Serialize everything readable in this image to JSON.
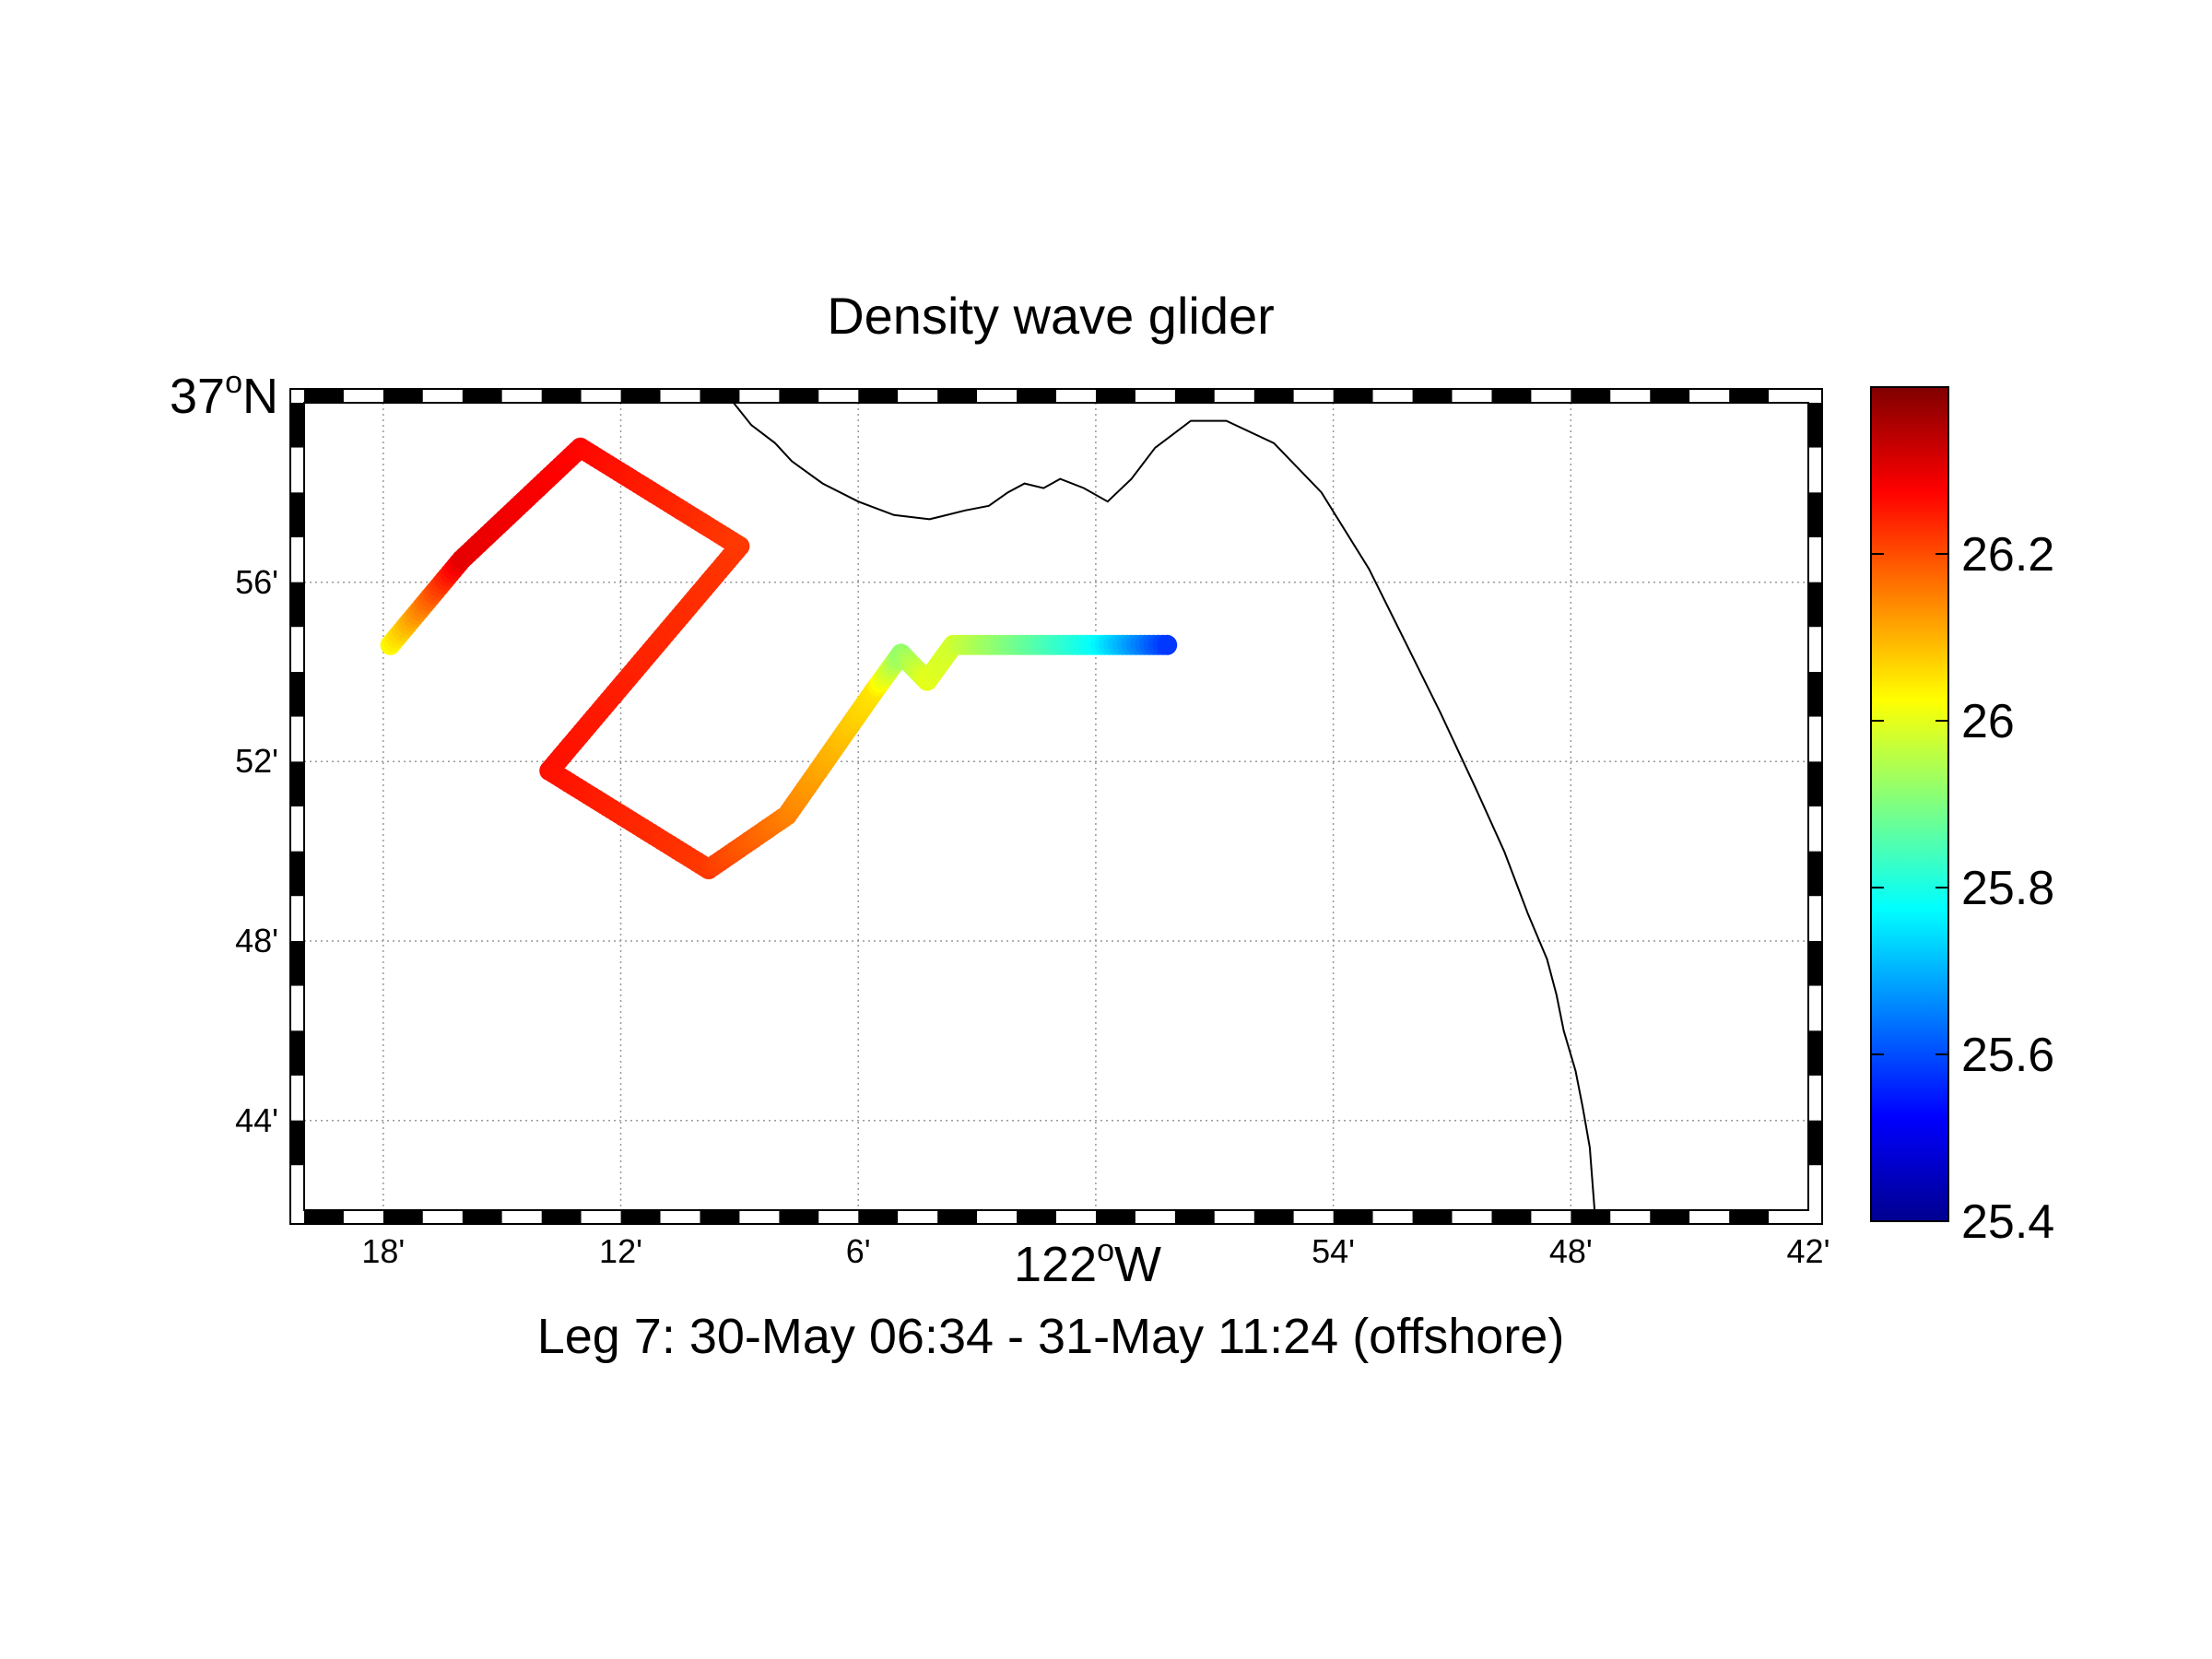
{
  "title": "Density wave glider",
  "subtitle": "Leg 7: 30-May 06:34 - 31-May 11:24 (offshore)",
  "map": {
    "lon_range": [
      -122.3333,
      -121.7
    ],
    "lat_range": [
      36.7,
      37.0
    ],
    "x_ticks": [
      {
        "lon": -122.3,
        "label": "18'"
      },
      {
        "lon": -122.2,
        "label": "12'"
      },
      {
        "lon": -122.1,
        "label": "6'"
      },
      {
        "lon": -121.9,
        "label": "54'"
      },
      {
        "lon": -121.8,
        "label": "48'"
      },
      {
        "lon": -121.7,
        "label": "42'"
      }
    ],
    "x_main_label": {
      "lon": -122.0,
      "deg": "122",
      "suffix": "W"
    },
    "y_ticks": [
      {
        "lat": 36.9333,
        "label": "56'"
      },
      {
        "lat": 36.8667,
        "label": "52'"
      },
      {
        "lat": 36.8,
        "label": "48'"
      },
      {
        "lat": 36.7333,
        "label": "44'"
      }
    ],
    "y_main_label": {
      "lat": 37.0,
      "deg": "37",
      "suffix": "N"
    },
    "coastline": [
      [
        -122.1525,
        37.0
      ],
      [
        -122.145,
        36.9917
      ],
      [
        -122.135,
        36.985
      ],
      [
        -122.128,
        36.9783
      ],
      [
        -122.115,
        36.97
      ],
      [
        -122.1,
        36.9633
      ],
      [
        -122.085,
        36.9583
      ],
      [
        -122.07,
        36.9567
      ],
      [
        -122.055,
        36.96
      ],
      [
        -122.045,
        36.9617
      ],
      [
        -122.037,
        36.9667
      ],
      [
        -122.03,
        36.97
      ],
      [
        -122.022,
        36.9683
      ],
      [
        -122.015,
        36.9717
      ],
      [
        -122.005,
        36.9683
      ],
      [
        -121.995,
        36.9633
      ],
      [
        -121.985,
        36.9717
      ],
      [
        -121.975,
        36.9833
      ],
      [
        -121.96,
        36.9933
      ],
      [
        -121.945,
        36.9933
      ],
      [
        -121.925,
        36.985
      ],
      [
        -121.905,
        36.9667
      ],
      [
        -121.885,
        36.9383
      ],
      [
        -121.87,
        36.9117
      ],
      [
        -121.855,
        36.885
      ],
      [
        -121.84,
        36.8567
      ],
      [
        -121.828,
        36.8333
      ],
      [
        -121.818,
        36.81
      ],
      [
        -121.81,
        36.7933
      ],
      [
        -121.806,
        36.78
      ],
      [
        -121.803,
        36.7667
      ],
      [
        -121.798,
        36.7517
      ],
      [
        -121.795,
        36.7383
      ],
      [
        -121.792,
        36.7233
      ],
      [
        -121.79,
        36.7
      ]
    ],
    "colorbar": {
      "min": 25.4,
      "max": 26.4,
      "ticks": [
        25.4,
        25.6,
        25.8,
        26,
        26.2
      ],
      "colormap": "jet"
    }
  },
  "chart_data": {
    "type": "scatter",
    "title": "Density wave glider",
    "subtitle": "Leg 7: 30-May 06:34 - 31-May 11:24 (offshore)",
    "x_unit": "degrees longitude",
    "y_unit": "degrees latitude",
    "waypoints": [
      {
        "lon": -122.297,
        "lat": 36.91,
        "density": 26.03
      },
      {
        "lon": -122.267,
        "lat": 36.9417,
        "density": 26.3
      },
      {
        "lon": -122.217,
        "lat": 36.9833,
        "density": 26.27
      },
      {
        "lon": -122.15,
        "lat": 36.9467,
        "density": 26.22
      },
      {
        "lon": -122.23,
        "lat": 36.8633,
        "density": 26.26
      },
      {
        "lon": -122.163,
        "lat": 36.8267,
        "density": 26.22
      },
      {
        "lon": -122.13,
        "lat": 36.8467,
        "density": 26.15
      },
      {
        "lon": -122.093,
        "lat": 36.8933,
        "density": 26.05
      },
      {
        "lon": -122.082,
        "lat": 36.9067,
        "density": 25.92
      },
      {
        "lon": -122.071,
        "lat": 36.8967,
        "density": 26.0
      },
      {
        "lon": -122.06,
        "lat": 36.91,
        "density": 25.98
      },
      {
        "lon": -122.0,
        "lat": 36.91,
        "density": 25.78
      },
      {
        "lon": -121.97,
        "lat": 36.91,
        "density": 25.58
      }
    ]
  }
}
